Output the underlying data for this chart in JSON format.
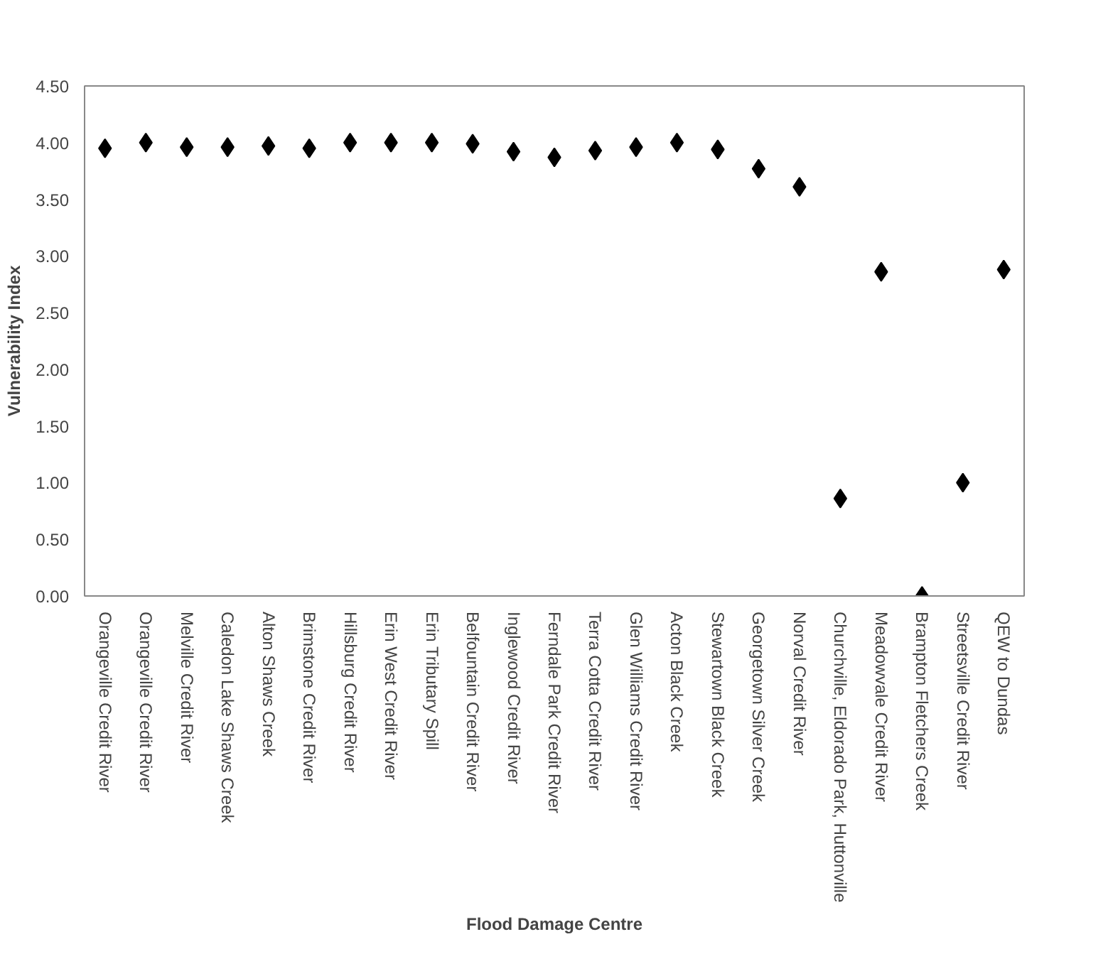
{
  "chart_data": {
    "type": "scatter",
    "xlabel": "Flood Damage Centre",
    "ylabel": "Vulnerability Index",
    "categories": [
      "Orangeville Credit River",
      "Orangeville Credit River",
      "Melville Credit River",
      "Caledon Lake Shaws Creek",
      "Alton Shaws Creek",
      "Brimstone Credit River",
      "Hillsburg Credit River",
      "Erin West Credit River",
      "Erin Tributary Spill",
      "Belfountain Credit River",
      "Inglewood Credit River",
      "Ferndale Park Credit River",
      "Terra Cotta Credit River",
      "Glen Williams Credit River",
      "Acton Black Creek",
      "Stewartown Black Creek",
      "Georgetown Silver Creek",
      "Norval Credit River",
      "Churchville, Eldorado Park, Huttonville",
      "Meadowvale Credit River",
      "Brampton Fletchers Creek",
      "Streetsville Credit River",
      "QEW to Dundas"
    ],
    "series": [
      {
        "color": "#000000",
        "values": [
          3.95,
          4.0,
          3.96,
          3.96,
          3.97,
          3.95,
          4.0,
          4.0,
          4.0,
          3.99,
          3.92,
          3.87,
          3.93,
          3.96,
          4.0,
          3.94,
          3.77,
          3.61,
          0.86,
          2.86,
          0.0,
          1.0,
          2.88
        ]
      }
    ],
    "ylim": [
      0,
      4.5
    ],
    "yticks": [
      {
        "value": 0,
        "label": "0.00"
      },
      {
        "value": 0.5,
        "label": "0.50"
      },
      {
        "value": 1,
        "label": "1.00"
      },
      {
        "value": 1.5,
        "label": "1.50"
      },
      {
        "value": 2,
        "label": "2.00"
      },
      {
        "value": 2.5,
        "label": "2.50"
      },
      {
        "value": 3,
        "label": "3.00"
      },
      {
        "value": 3.5,
        "label": "3.50"
      },
      {
        "value": 4,
        "label": "4.00"
      },
      {
        "value": 4.5,
        "label": "4.50"
      }
    ],
    "marker": "diamond"
  }
}
